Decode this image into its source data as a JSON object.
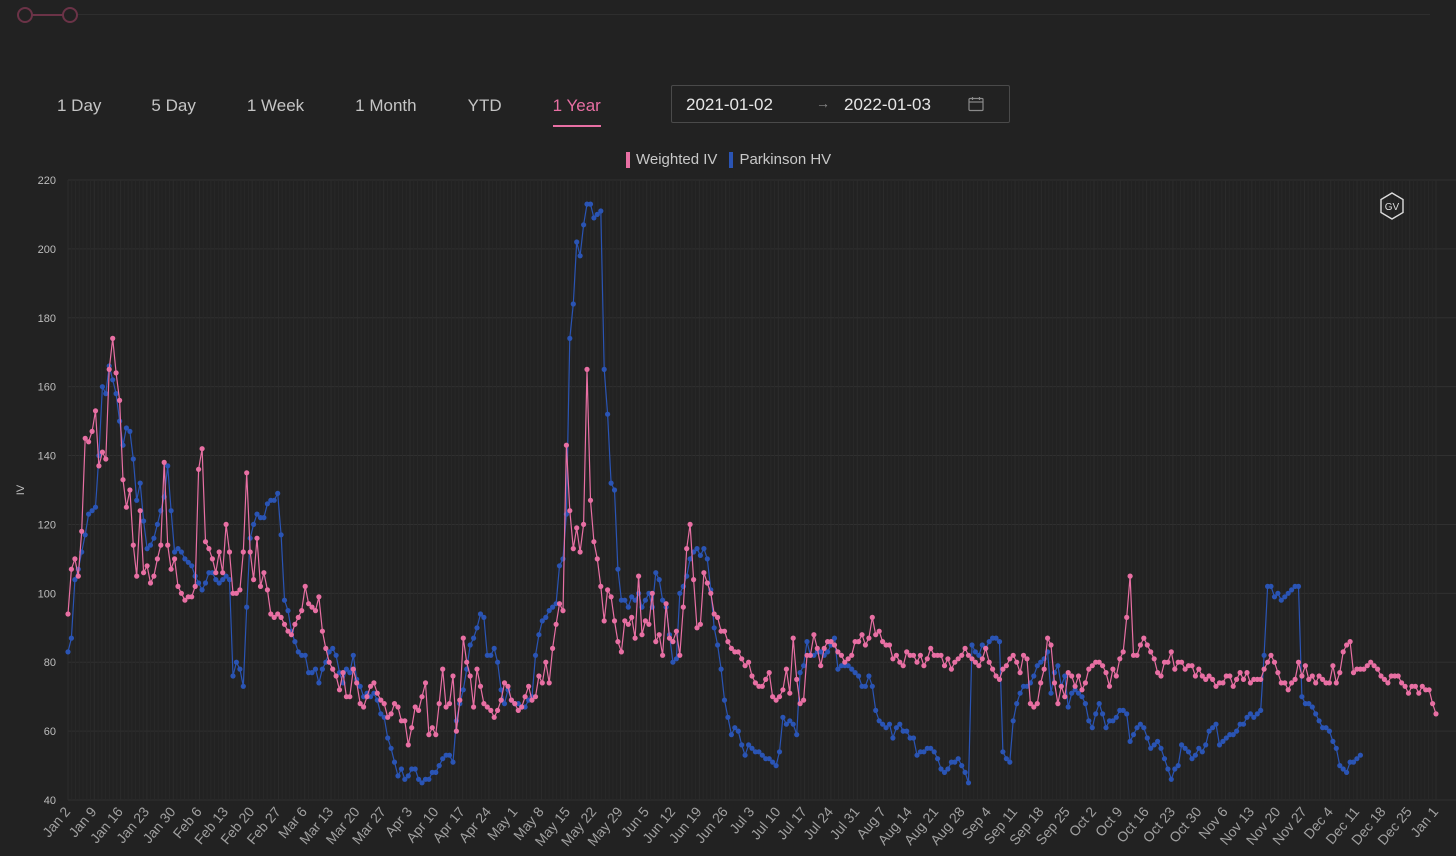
{
  "tabs": [
    {
      "label": "1 Day"
    },
    {
      "label": "5 Day"
    },
    {
      "label": "1 Week"
    },
    {
      "label": "1 Month"
    },
    {
      "label": "YTD"
    },
    {
      "label": "1 Year"
    }
  ],
  "active_tab": "1 Year",
  "date_range": {
    "start": "2021-01-02",
    "end": "2022-01-03",
    "separator": "→"
  },
  "colors": {
    "weighted_iv": "#e86fa3",
    "parkinson_hv": "#2a54b4",
    "background": "#222222",
    "accent": "#e86fa3"
  },
  "icons": {
    "logo": "link-logo-icon",
    "calendar": "calendar-icon",
    "badge": "gv-hexagon-icon"
  },
  "badge_text": "GV",
  "chart_data": {
    "type": "line",
    "ylabel": "IV",
    "xlabel": "",
    "ylim": [
      40,
      220
    ],
    "yticks": [
      40,
      60,
      80,
      100,
      120,
      140,
      160,
      180,
      200,
      220
    ],
    "grid": true,
    "legend_placement": "top-center",
    "x_ticks": [
      "Jan 2",
      "Jan 9",
      "Jan 16",
      "Jan 23",
      "Jan 30",
      "Feb 6",
      "Feb 13",
      "Feb 20",
      "Feb 27",
      "Mar 6",
      "Mar 13",
      "Mar 20",
      "Mar 27",
      "Apr 3",
      "Apr 10",
      "Apr 17",
      "Apr 24",
      "May 1",
      "May 8",
      "May 15",
      "May 22",
      "May 29",
      "Jun 5",
      "Jun 12",
      "Jun 19",
      "Jun 26",
      "Jul 3",
      "Jul 10",
      "Jul 17",
      "Jul 24",
      "Jul 31",
      "Aug 7",
      "Aug 14",
      "Aug 21",
      "Aug 28",
      "Sep 4",
      "Sep 11",
      "Sep 18",
      "Sep 25",
      "Oct 2",
      "Oct 9",
      "Oct 16",
      "Oct 23",
      "Oct 30",
      "Nov 6",
      "Nov 13",
      "Nov 20",
      "Nov 27",
      "Dec 4",
      "Dec 11",
      "Dec 18",
      "Dec 25",
      "Jan 1"
    ],
    "series": [
      {
        "name": "Weighted IV",
        "color": "#e86fa3",
        "values": [
          94,
          107,
          110,
          105,
          118,
          145,
          144,
          147,
          153,
          137,
          141,
          139,
          165,
          174,
          164,
          156,
          133,
          125,
          130,
          114,
          105,
          124,
          106,
          108,
          103,
          105,
          110,
          114,
          138,
          114,
          107,
          110,
          102,
          100,
          98,
          99,
          99,
          102,
          136,
          142,
          115,
          113,
          110,
          106,
          112,
          106,
          120,
          112,
          100,
          100,
          101,
          112,
          135,
          112,
          104,
          116,
          102,
          106,
          101,
          94,
          93,
          94,
          93,
          91,
          89,
          88,
          91,
          93,
          95,
          102,
          97,
          96,
          95,
          99,
          89,
          84,
          80,
          78,
          76,
          72,
          77,
          70,
          70,
          78,
          74,
          68,
          67,
          70,
          73,
          74,
          71,
          69,
          68,
          64,
          65,
          68,
          67,
          63,
          63,
          56,
          61,
          67,
          66,
          70,
          74,
          59,
          61,
          59,
          68,
          78,
          67,
          68,
          76,
          60,
          69,
          87,
          80,
          76,
          67,
          78,
          73,
          68,
          67,
          66,
          64,
          66,
          69,
          74,
          73,
          69,
          68,
          66,
          67,
          70,
          73,
          69,
          70,
          76,
          74,
          80,
          74,
          84,
          91,
          97,
          95,
          143,
          124,
          113,
          119,
          112,
          120,
          165,
          127,
          115,
          110,
          102,
          92,
          101,
          99,
          92,
          86,
          83,
          92,
          91,
          93,
          87,
          105,
          88,
          92,
          91,
          100,
          86,
          88,
          82,
          97,
          87,
          86,
          89,
          82,
          96,
          113,
          120,
          104,
          90,
          91,
          106,
          103,
          100,
          94,
          93,
          89,
          89,
          86,
          84,
          83,
          83,
          81,
          79,
          80,
          76,
          74,
          73,
          73,
          75,
          77,
          70,
          69,
          70,
          72,
          78,
          71,
          87,
          75,
          68,
          69,
          82,
          82,
          88,
          84,
          79,
          84,
          86,
          86,
          85,
          83,
          82,
          80,
          81,
          82,
          86,
          86,
          88,
          85,
          87,
          93,
          88,
          89,
          86,
          85,
          85,
          81,
          82,
          80,
          79,
          83,
          82,
          82,
          80,
          82,
          79,
          81,
          84,
          82,
          82,
          82,
          79,
          81,
          78,
          80,
          81,
          82,
          84,
          82,
          81,
          80,
          79,
          81,
          84,
          80,
          78,
          76,
          75,
          78,
          79,
          81,
          82,
          80,
          77,
          82,
          81,
          68,
          67,
          68,
          74,
          78,
          87,
          85,
          74,
          68,
          73,
          70,
          77,
          76,
          73,
          76,
          72,
          74,
          78,
          79,
          80,
          80,
          79,
          77,
          73,
          78,
          76,
          81,
          83,
          93,
          105,
          82,
          82,
          85,
          87,
          85,
          83,
          81,
          77,
          76,
          80,
          80,
          83,
          78,
          80,
          80,
          78,
          79,
          79,
          76,
          78,
          76,
          75,
          76,
          75,
          73,
          74,
          74,
          76,
          76,
          73,
          75,
          77,
          75,
          77,
          74,
          75,
          75,
          75,
          78,
          80,
          82,
          80,
          77,
          74,
          74,
          72,
          74,
          75,
          80,
          76,
          79,
          75,
          76,
          74,
          76,
          75,
          74,
          74,
          79,
          74,
          77,
          83,
          85,
          86,
          77,
          78,
          78,
          78,
          79,
          80,
          79,
          78,
          76,
          75,
          74,
          76,
          76,
          76,
          74,
          73,
          71,
          73,
          73,
          71,
          73,
          72,
          72,
          68,
          65
        ]
      },
      {
        "name": "Parkinson HV",
        "color": "#2a54b4",
        "values": [
          83,
          87,
          104,
          107,
          112,
          117,
          123,
          124,
          125,
          140,
          160,
          158,
          166,
          162,
          158,
          150,
          143,
          148,
          147,
          139,
          127,
          132,
          121,
          113,
          114,
          116,
          120,
          124,
          128,
          137,
          124,
          112,
          113,
          112,
          110,
          109,
          108,
          105,
          103,
          101,
          103,
          106,
          106,
          104,
          103,
          104,
          105,
          104,
          76,
          80,
          78,
          73,
          96,
          116,
          120,
          123,
          122,
          122,
          126,
          127,
          127,
          129,
          117,
          98,
          95,
          89,
          86,
          83,
          82,
          82,
          77,
          77,
          78,
          74,
          78,
          80,
          83,
          84,
          82,
          77,
          74,
          78,
          77,
          82,
          75,
          73,
          70,
          71,
          70,
          71,
          69,
          65,
          64,
          58,
          55,
          51,
          47,
          49,
          46,
          47,
          49,
          49,
          46,
          45,
          46,
          46,
          48,
          48,
          50,
          52,
          53,
          53,
          51,
          63,
          68,
          72,
          78,
          85,
          87,
          90,
          94,
          93,
          82,
          82,
          84,
          80,
          72,
          68,
          72,
          69,
          68,
          68,
          67,
          67,
          69,
          70,
          82,
          88,
          92,
          93,
          95,
          96,
          97,
          108,
          110,
          123,
          174,
          184,
          202,
          198,
          207,
          213,
          213,
          209,
          210,
          211,
          165,
          152,
          132,
          130,
          107,
          98,
          98,
          96,
          99,
          98,
          100,
          96,
          98,
          100,
          96,
          106,
          104,
          98,
          96,
          88,
          80,
          81,
          100,
          102,
          105,
          110,
          112,
          113,
          111,
          113,
          110,
          101,
          90,
          85,
          78,
          69,
          64,
          59,
          61,
          60,
          56,
          53,
          56,
          55,
          54,
          54,
          53,
          52,
          52,
          51,
          50,
          54,
          64,
          62,
          63,
          62,
          59,
          77,
          79,
          86,
          82,
          82,
          83,
          83,
          82,
          83,
          85,
          87,
          78,
          79,
          79,
          79,
          78,
          77,
          76,
          73,
          73,
          76,
          73,
          66,
          63,
          62,
          61,
          62,
          58,
          61,
          62,
          60,
          60,
          58,
          58,
          53,
          54,
          54,
          55,
          55,
          54,
          52,
          49,
          48,
          49,
          51,
          51,
          52,
          50,
          48,
          45,
          85,
          83,
          82,
          85,
          84,
          86,
          87,
          87,
          86,
          54,
          52,
          51,
          63,
          68,
          71,
          73,
          73,
          74,
          76,
          79,
          80,
          81,
          83,
          71,
          77,
          79,
          73,
          76,
          67,
          71,
          72,
          71,
          70,
          68,
          63,
          61,
          65,
          68,
          65,
          61,
          63,
          63,
          64,
          66,
          66,
          65,
          57,
          59,
          61,
          62,
          61,
          58,
          55,
          56,
          57,
          55,
          52,
          49,
          46,
          49,
          50,
          56,
          55,
          54,
          52,
          53,
          55,
          54,
          56,
          60,
          61,
          62,
          56,
          57,
          58,
          59,
          59,
          60,
          62,
          62,
          64,
          65,
          64,
          65,
          66,
          82,
          102,
          102,
          99,
          100,
          98,
          99,
          100,
          101,
          102,
          102,
          70,
          68,
          68,
          67,
          65,
          63,
          61,
          61,
          60,
          57,
          55,
          50,
          49,
          48,
          51,
          51,
          52,
          53
        ]
      }
    ]
  }
}
